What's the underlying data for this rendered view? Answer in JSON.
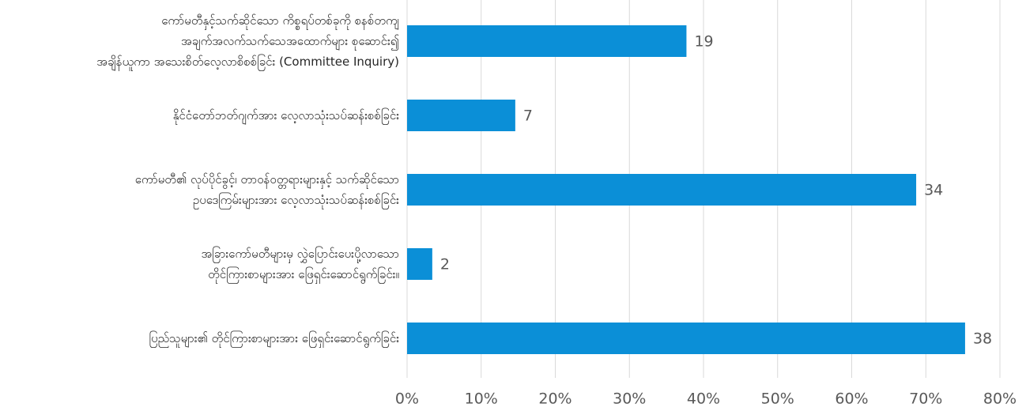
{
  "chart_data": {
    "type": "barh",
    "categories": [
      "ကော်မတီနှင့်သက်ဆိုင်သော ကိစ္စရပ်တစ်ခုကို စနစ်တကျ\nအချက်အလက်သက်သေအထောက်များ စုဆောင်း၍\nအချိန်ယူကာ အသေးစိတ်လေ့လာစိစစ်ခြင်း (Committee Inquiry)",
      "နိုင်ငံတော်ဘတ်ဂျက်အား လေ့လာသုံးသပ်ဆန်းစစ်ခြင်း",
      "ကော်မတီ၏ လုပ်ပိုင်ခွင့်၊ တာဝန်ဝတ္တရားများနှင့် သက်ဆိုင်သော\nဥပဒေကြမ်းများအား လေ့လာသုံးသပ်ဆန်းစစ်ခြင်း",
      "အခြားကော်မတီများမှ လွှဲပြောင်းပေးပို့လာသော\nတိုင်ကြားစာများအား ဖြေရှင်းဆောင်ရွက်ခြင်း။",
      "ပြည်သူများ၏ တိုင်ကြားစာများအား ဖြေရှင်းဆောင်ရွက်ခြင်း"
    ],
    "values": [
      37.7,
      14.6,
      68.7,
      3.4,
      75.3
    ],
    "counts": [
      19,
      7,
      34,
      2,
      38
    ],
    "color": "#0b8fd7",
    "xlim": [
      0,
      80
    ],
    "xticks": [
      {
        "value": 0,
        "label": "0%"
      },
      {
        "value": 10,
        "label": "10%"
      },
      {
        "value": 20,
        "label": "20%"
      },
      {
        "value": 30,
        "label": "30%"
      },
      {
        "value": 40,
        "label": "40%"
      },
      {
        "value": 50,
        "label": "50%"
      },
      {
        "value": 60,
        "label": "60%"
      },
      {
        "value": 70,
        "label": "70%"
      },
      {
        "value": 80,
        "label": "80%"
      }
    ],
    "grid": true
  }
}
